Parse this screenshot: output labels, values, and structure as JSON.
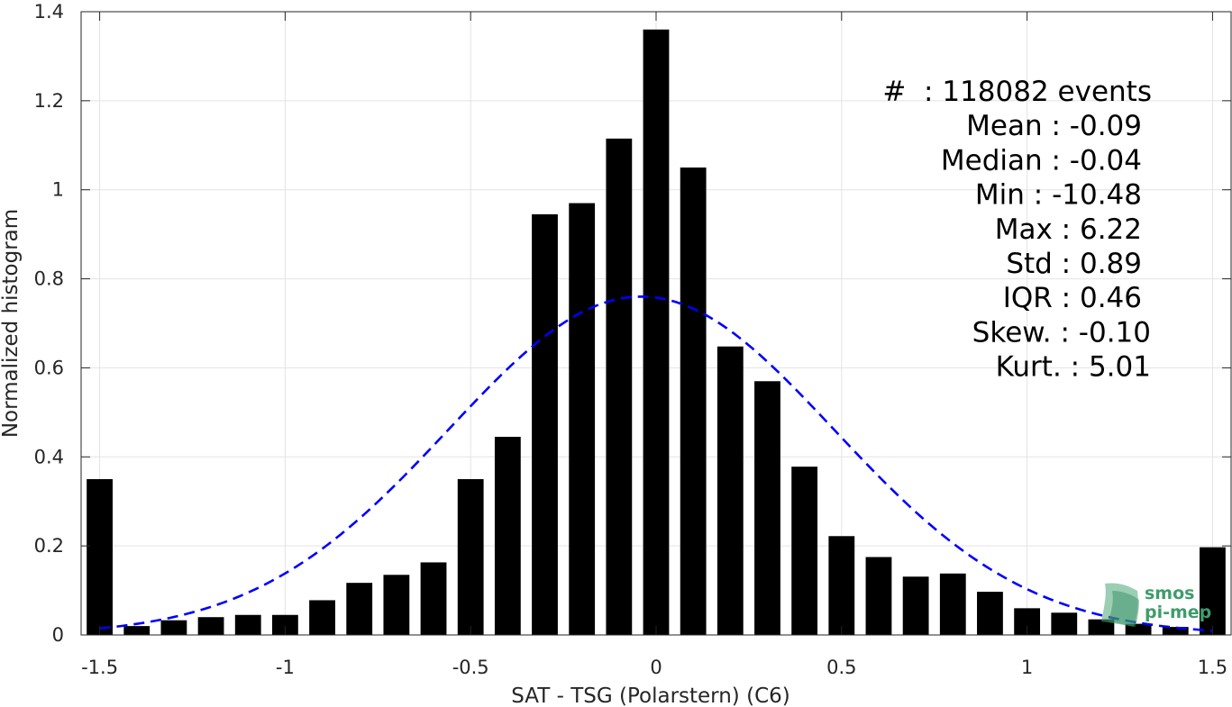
{
  "chart_data": {
    "type": "bar",
    "xlabel": "SAT - TSG (Polarstern) (C6)",
    "ylabel": "Normalized histogram",
    "xlim": [
      -1.55,
      1.55
    ],
    "ylim": [
      0,
      1.4
    ],
    "grid": true,
    "x_ticks": [
      -1.5,
      -1,
      -0.5,
      0,
      0.5,
      1,
      1.5
    ],
    "x_tick_labels": [
      "-1.5",
      "-1",
      "-0.5",
      "0",
      "0.5",
      "1",
      "1.5"
    ],
    "y_ticks": [
      0,
      0.2,
      0.4,
      0.6,
      0.8,
      1,
      1.2,
      1.4
    ],
    "y_tick_labels": [
      "0",
      "0.2",
      "0.4",
      "0.6",
      "0.8",
      "1",
      "1.2",
      "1.4"
    ],
    "bar_width": 0.07,
    "x": [
      -1.5,
      -1.4,
      -1.3,
      -1.2,
      -1.1,
      -1.0,
      -0.9,
      -0.8,
      -0.7,
      -0.6,
      -0.5,
      -0.4,
      -0.3,
      -0.2,
      -0.1,
      0.0,
      0.1,
      0.2,
      0.3,
      0.4,
      0.5,
      0.6,
      0.7,
      0.8,
      0.9,
      1.0,
      1.1,
      1.2,
      1.3,
      1.4,
      1.5
    ],
    "values": [
      0.35,
      0.02,
      0.033,
      0.04,
      0.045,
      0.045,
      0.078,
      0.117,
      0.135,
      0.163,
      0.35,
      0.445,
      0.945,
      0.97,
      1.115,
      1.36,
      1.05,
      0.648,
      0.57,
      0.378,
      0.222,
      0.175,
      0.131,
      0.138,
      0.097,
      0.06,
      0.05,
      0.035,
      0.025,
      0.018,
      0.197
    ],
    "fit_curve": {
      "type": "normal",
      "mean": -0.04,
      "std": 0.52,
      "peak": 0.76,
      "x_range": [
        -1.5,
        1.5
      ],
      "color": "#0000ff",
      "style": "dashed"
    },
    "bar_color": "#000000",
    "annotation": {
      "lines": [
        "#  : 118082 events",
        "Mean : -0.09",
        "Median : -0.04",
        "Min : -10.48",
        "Max : 6.22",
        "Std : 0.89",
        "IQR : 0.46",
        "Skew. : -0.10",
        "Kurt. : 5.01"
      ],
      "placement": "top-right"
    },
    "logo": {
      "text_lines": [
        "smos",
        "pi-mep"
      ],
      "color": "#3e9d6b"
    }
  }
}
